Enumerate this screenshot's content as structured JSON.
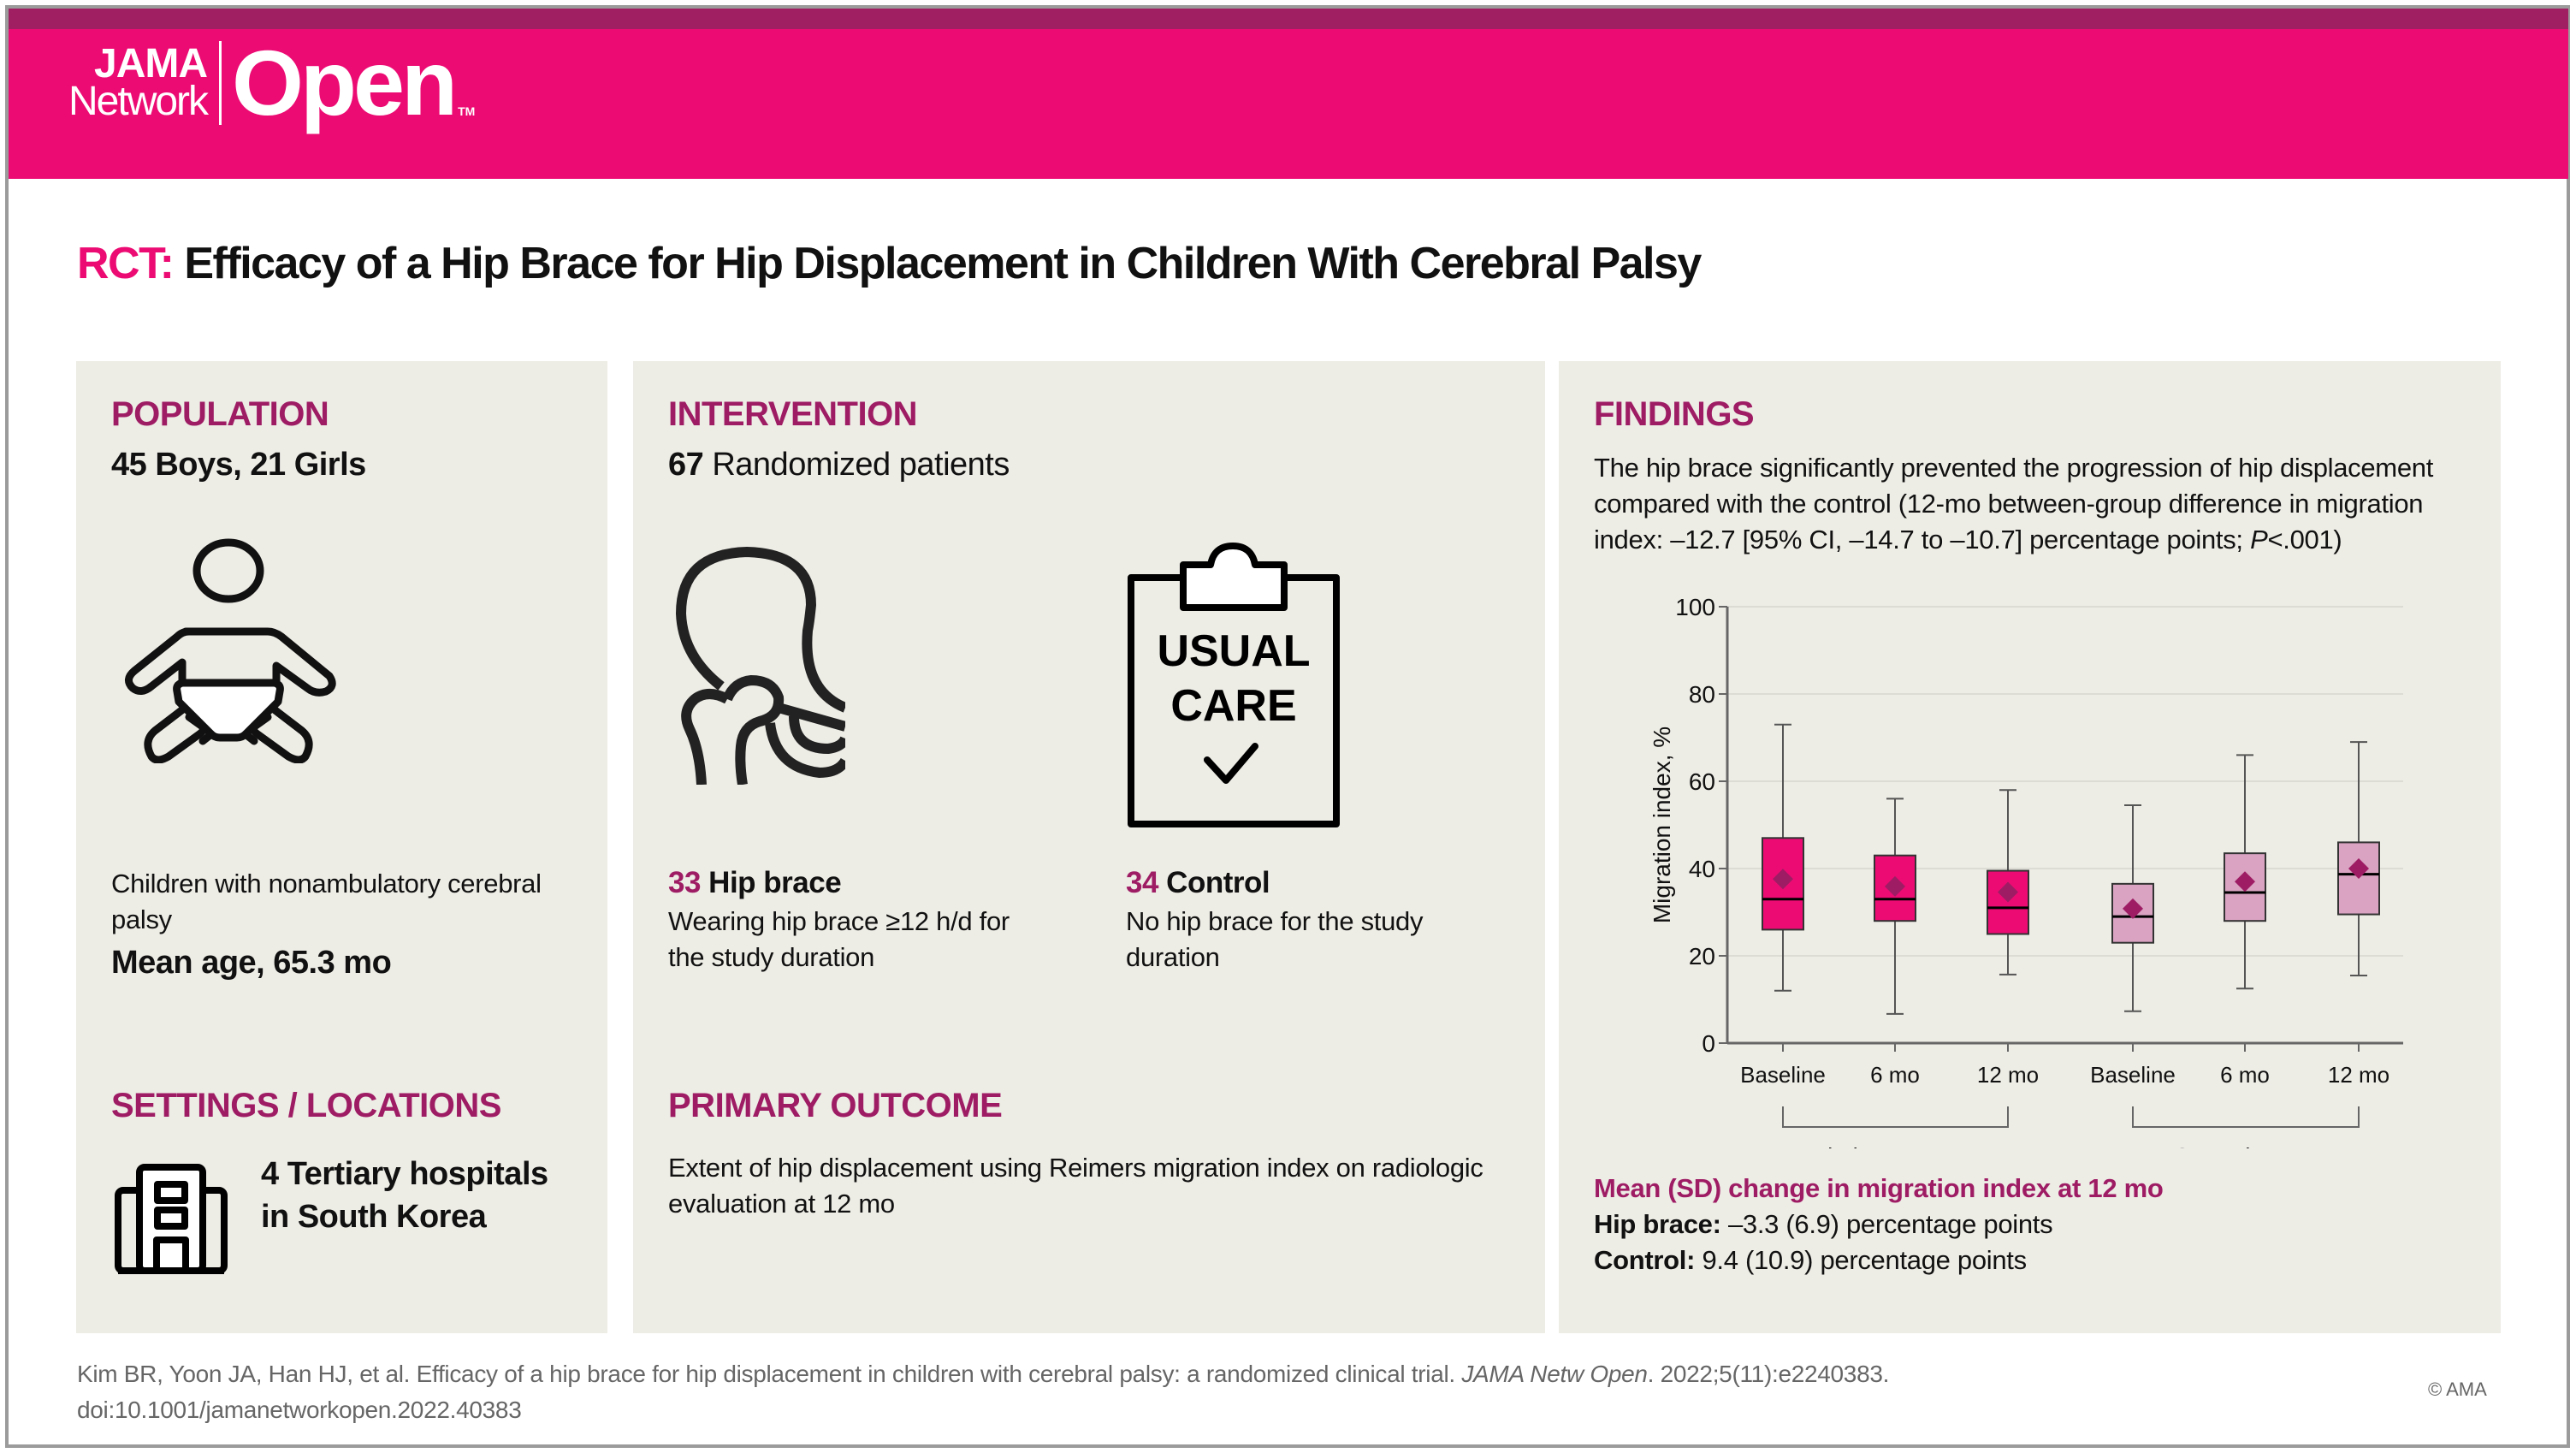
{
  "brand": {
    "jama": "JAMA",
    "network": "Network",
    "open": "Open",
    "tm": "TM",
    "colors": {
      "header_pink": "#ec0b73",
      "header_strip": "#a01e62",
      "heading": "#9e1c64",
      "panel_bg": "#edece5"
    }
  },
  "title": {
    "prefix": "RCT:",
    "text": "Efficacy of a Hip Brace for Hip Displacement in Children With Cerebral Palsy"
  },
  "population": {
    "heading": "POPULATION",
    "summary": "45 Boys, 21 Girls",
    "icon": "baby-icon",
    "description": "Children with nonambulatory cerebral palsy",
    "mean_age": "Mean age, 65.3 mo"
  },
  "intervention": {
    "heading": "INTERVENTION",
    "count": "67",
    "count_label": "Randomized patients",
    "arms": [
      {
        "icon": "hip-joint-icon",
        "n": "33",
        "label": "Hip brace",
        "description": "Wearing hip brace ≥12 h/d for the study duration"
      },
      {
        "icon": "clipboard-icon",
        "icon_text_1": "USUAL",
        "icon_text_2": "CARE",
        "n": "34",
        "label": "Control",
        "description": "No hip brace for the study duration"
      }
    ]
  },
  "settings": {
    "heading": "SETTINGS / LOCATIONS",
    "icon": "hospital-building-icon",
    "line1": "4 Tertiary hospitals",
    "line2": "in South Korea"
  },
  "primary_outcome": {
    "heading": "PRIMARY OUTCOME",
    "text": "Extent of hip displacement using Reimers migration index on radiologic evaluation at 12 mo"
  },
  "findings": {
    "heading": "FINDINGS",
    "text_before_p": "The hip brace significantly prevented the progression of hip displacement compared with the control (12-mo between-group difference in migration index: –12.7 [95% CI, –14.7 to –10.7] percentage points; ",
    "p_italic": "P",
    "text_after_p": "<.001)",
    "change_heading": "Mean (SD) change in migration index at 12 mo",
    "changes": [
      {
        "label": "Hip brace:",
        "value": "–3.3 (6.9) percentage points"
      },
      {
        "label": "Control:",
        "value": "9.4 (10.9) percentage points"
      }
    ]
  },
  "chart_data": {
    "type": "boxplot",
    "title": "",
    "ylabel": "Migration index, %",
    "xlabel": "",
    "ylim": [
      0,
      100
    ],
    "yticks": [
      0,
      20,
      40,
      60,
      80,
      100
    ],
    "grid": true,
    "categories": [
      "Baseline",
      "6 mo",
      "12 mo",
      "Baseline",
      "6 mo",
      "12 mo"
    ],
    "groups": [
      {
        "name": "Hip brace group",
        "color": "#ec0b73",
        "categories": [
          0,
          1,
          2
        ]
      },
      {
        "name": "Control group",
        "color": "#d9a3c1",
        "categories": [
          3,
          4,
          5
        ]
      }
    ],
    "mean_marker_color": "#9e1c64",
    "series": [
      {
        "group": "Hip brace group",
        "label": "Baseline",
        "min": 12,
        "q1": 26,
        "median": 33,
        "q3": 47,
        "max": 73,
        "mean": 37.6
      },
      {
        "group": "Hip brace group",
        "label": "6 mo",
        "min": 6.7,
        "q1": 28,
        "median": 33,
        "q3": 43,
        "max": 56,
        "mean": 35.9
      },
      {
        "group": "Hip brace group",
        "label": "12 mo",
        "min": 15.7,
        "q1": 25,
        "median": 31,
        "q3": 39.5,
        "max": 58,
        "mean": 34.6
      },
      {
        "group": "Control group",
        "label": "Baseline",
        "min": 7.3,
        "q1": 23,
        "median": 29,
        "q3": 36.5,
        "max": 54.5,
        "mean": 30.8
      },
      {
        "group": "Control group",
        "label": "6 mo",
        "min": 12.5,
        "q1": 28,
        "median": 34.5,
        "q3": 43.5,
        "max": 66,
        "mean": 37
      },
      {
        "group": "Control group",
        "label": "12 mo",
        "min": 15.5,
        "q1": 29.5,
        "median": 38.7,
        "q3": 46,
        "max": 69,
        "mean": 40
      }
    ]
  },
  "citation": {
    "text_before_journal": "Kim BR, Yoon JA, Han HJ, et al. Efficacy of a hip brace for hip displacement in children with cerebral palsy: a randomized clinical trial. ",
    "journal": "JAMA Netw Open",
    "text_after_journal": ". 2022;5(11):e2240383.",
    "doi": "doi:10.1001/jamanetworkopen.2022.40383"
  },
  "copyright": "© AMA"
}
